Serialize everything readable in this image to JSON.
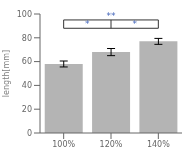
{
  "chart_data": {
    "type": "bar",
    "categories": [
      "100%",
      "120%",
      "140%"
    ],
    "values": [
      58.0,
      68.0,
      77.0
    ],
    "errors": [
      2.5,
      3.0,
      2.5
    ],
    "color": "#b4b4b4",
    "ylabel": "length[mm]",
    "ylim": [
      0,
      100
    ],
    "yticks": [
      0,
      20,
      40,
      60,
      80,
      100
    ],
    "grid": false,
    "annotations": [
      {
        "text": "*",
        "from": "100%",
        "to": "120%",
        "y": 88,
        "color": "#4466bb"
      },
      {
        "text": "**",
        "from": "100%",
        "to": "140%",
        "y": 95,
        "color": "#4466bb"
      },
      {
        "text": "*",
        "from": "120%",
        "to": "140%",
        "y": 88,
        "color": "#4466bb"
      }
    ]
  }
}
